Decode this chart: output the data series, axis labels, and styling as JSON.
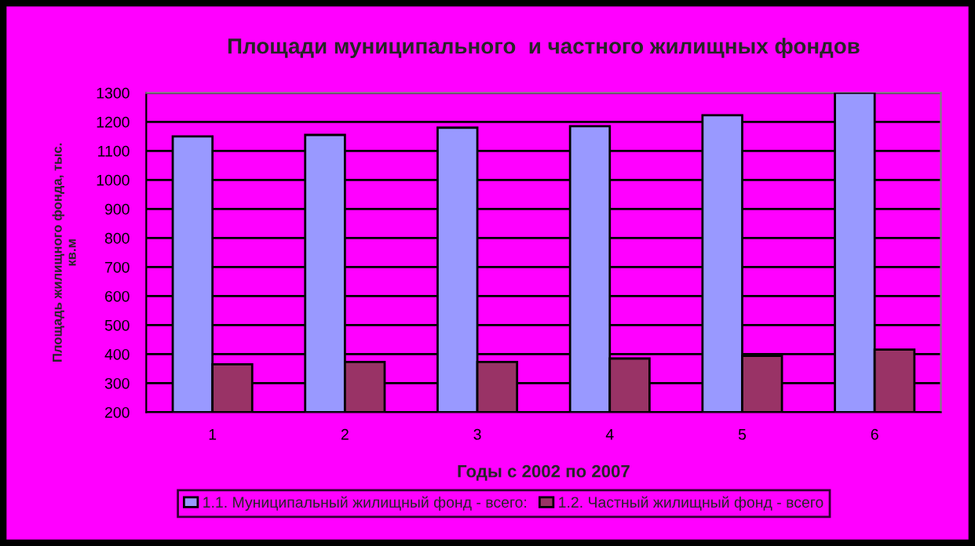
{
  "chart_data": {
    "type": "bar",
    "title": "Площади муниципального  и частного жилищных фондов",
    "xlabel": "Годы с 2002 по 2007",
    "ylabel": "Площадь жилищного фонда, тыс.\nкв.м",
    "categories": [
      "1",
      "2",
      "3",
      "4",
      "5",
      "6"
    ],
    "series": [
      {
        "name": "1.1. Муниципальный жилищный фонд - всего:",
        "color": "#9999ff",
        "values": [
          1150,
          1155,
          1180,
          1185,
          1223,
          1300
        ]
      },
      {
        "name": "1.2. Частный жилищный фонд - всего",
        "color": "#993366",
        "values": [
          365,
          373,
          373,
          385,
          394,
          416
        ]
      }
    ],
    "ylim": [
      200,
      1300
    ],
    "yticks": [
      200,
      300,
      400,
      500,
      600,
      700,
      800,
      900,
      1000,
      1100,
      1200,
      1300
    ],
    "grid": "y",
    "legend": "bottom"
  }
}
